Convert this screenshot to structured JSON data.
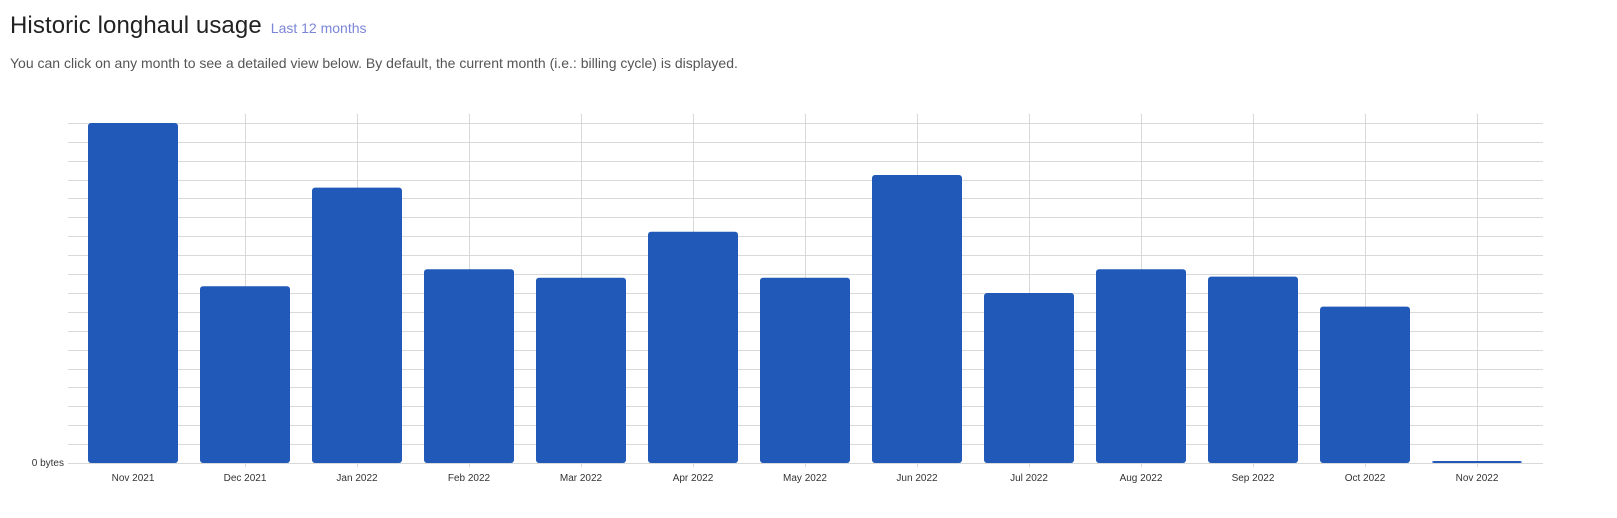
{
  "header": {
    "title": "Historic longhaul usage",
    "range_link": "Last 12 months",
    "subtitle": "You can click on any month to see a detailed view below. By default, the current month (i.e.: billing cycle) is displayed."
  },
  "colors": {
    "bar": "#2159b8",
    "grid": "#d9d9d9",
    "link": "#7b86d8"
  },
  "chart_data": {
    "type": "bar",
    "title": "",
    "xlabel": "",
    "ylabel": "",
    "y_zero_label": "0 bytes",
    "categories": [
      "Nov 2021",
      "Dec 2021",
      "Jan 2022",
      "Feb 2022",
      "Mar 2022",
      "Apr 2022",
      "May 2022",
      "Jun 2022",
      "Jul 2022",
      "Aug 2022",
      "Sep 2022",
      "Oct 2022",
      "Nov 2022"
    ],
    "values": [
      100,
      52,
      81,
      57,
      54.5,
      68,
      54.5,
      84.7,
      50,
      57,
      54.8,
      46,
      0.4
    ],
    "ylim": [
      0,
      100
    ],
    "grid": true
  }
}
